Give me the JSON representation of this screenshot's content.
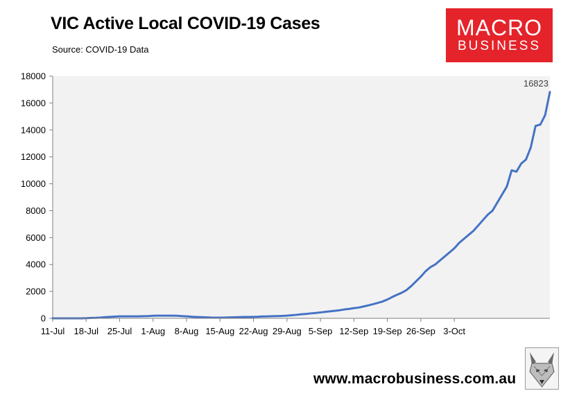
{
  "header": {
    "title": "VIC Active Local COVID-19 Cases",
    "source": "Source: COVID-19 Data"
  },
  "logo": {
    "line1": "MACRO",
    "line2": "BUSINESS",
    "color": "#e5232a"
  },
  "footer": {
    "website": "www.macrobusiness.com.au"
  },
  "colors": {
    "line": "#4472c4",
    "plot_bg": "#f2f2f2",
    "axis": "#808080"
  },
  "chart_data": {
    "type": "line",
    "title": "VIC Active Local COVID-19 Cases",
    "xlabel": "",
    "ylabel": "",
    "ylim": [
      0,
      18000
    ],
    "yticks": [
      0,
      2000,
      4000,
      6000,
      8000,
      10000,
      12000,
      14000,
      16000,
      18000
    ],
    "xticks": [
      "11-Jul",
      "18-Jul",
      "25-Jul",
      "1-Aug",
      "8-Aug",
      "15-Aug",
      "22-Aug",
      "29-Aug",
      "5-Sep",
      "12-Sep",
      "19-Sep",
      "26-Sep",
      "3-Oct"
    ],
    "grid": false,
    "legend": "none",
    "x_start": "11-Jul",
    "x_end": "9-Oct",
    "annotation": {
      "text": "16823",
      "at": "9-Oct"
    },
    "series": [
      {
        "values": [
          0,
          0,
          0,
          0,
          0,
          0,
          0,
          10,
          30,
          40,
          60,
          90,
          110,
          130,
          150,
          150,
          150,
          150,
          150,
          160,
          170,
          190,
          200,
          200,
          200,
          200,
          190,
          170,
          150,
          120,
          100,
          90,
          80,
          60,
          50,
          50,
          60,
          70,
          80,
          90,
          100,
          100,
          110,
          120,
          140,
          150,
          160,
          170,
          180,
          200,
          230,
          260,
          300,
          330,
          370,
          400,
          440,
          480,
          520,
          560,
          600,
          660,
          700,
          760,
          800,
          880,
          960,
          1050,
          1150,
          1250,
          1400,
          1580,
          1750,
          1900,
          2100,
          2400,
          2750,
          3100,
          3500,
          3800,
          4000,
          4300,
          4600,
          4900,
          5200,
          5600,
          5900,
          6200,
          6500,
          6900,
          7300,
          7700,
          8000,
          8600,
          9200,
          9800,
          11000,
          10900,
          11500,
          11800,
          12700,
          14300,
          14400,
          15100,
          16823
        ]
      }
    ]
  }
}
